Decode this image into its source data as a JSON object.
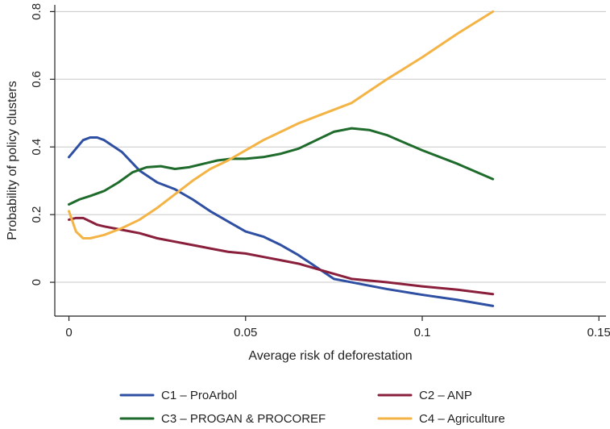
{
  "chart_data": {
    "type": "line",
    "title": "",
    "xlabel": "Average risk of deforestation",
    "ylabel": "Probability of policy clusters",
    "xlim": [
      -0.004,
      0.152
    ],
    "ylim": [
      -0.1,
      0.82
    ],
    "x_ticks": [
      0,
      0.05,
      0.1,
      0.15
    ],
    "x_tick_labels": [
      "0",
      "0.05",
      "0.1",
      "0.15"
    ],
    "y_ticks": [
      0,
      0.2,
      0.4,
      0.6,
      0.8
    ],
    "y_tick_labels": [
      "0",
      "0.2",
      "0.4",
      "0.6",
      "0.8"
    ],
    "grid": "horizontal",
    "legend_position": "bottom",
    "series": [
      {
        "name": "C1 – ProArbol",
        "color": "#2e4fa2",
        "points": [
          [
            0,
            0.37
          ],
          [
            0.002,
            0.395
          ],
          [
            0.004,
            0.42
          ],
          [
            0.006,
            0.428
          ],
          [
            0.008,
            0.428
          ],
          [
            0.01,
            0.42
          ],
          [
            0.015,
            0.385
          ],
          [
            0.02,
            0.33
          ],
          [
            0.025,
            0.295
          ],
          [
            0.03,
            0.275
          ],
          [
            0.035,
            0.245
          ],
          [
            0.04,
            0.21
          ],
          [
            0.045,
            0.18
          ],
          [
            0.05,
            0.15
          ],
          [
            0.055,
            0.135
          ],
          [
            0.06,
            0.11
          ],
          [
            0.065,
            0.08
          ],
          [
            0.07,
            0.045
          ],
          [
            0.075,
            0.01
          ],
          [
            0.08,
            0.0
          ],
          [
            0.09,
            -0.02
          ],
          [
            0.1,
            -0.037
          ],
          [
            0.11,
            -0.052
          ],
          [
            0.12,
            -0.07
          ]
        ]
      },
      {
        "name": "C2 – ANP",
        "color": "#8a1f3c",
        "points": [
          [
            0,
            0.185
          ],
          [
            0.002,
            0.19
          ],
          [
            0.004,
            0.19
          ],
          [
            0.006,
            0.18
          ],
          [
            0.008,
            0.17
          ],
          [
            0.01,
            0.165
          ],
          [
            0.015,
            0.155
          ],
          [
            0.02,
            0.145
          ],
          [
            0.025,
            0.13
          ],
          [
            0.03,
            0.12
          ],
          [
            0.035,
            0.11
          ],
          [
            0.04,
            0.1
          ],
          [
            0.045,
            0.09
          ],
          [
            0.05,
            0.085
          ],
          [
            0.055,
            0.075
          ],
          [
            0.06,
            0.065
          ],
          [
            0.065,
            0.055
          ],
          [
            0.07,
            0.04
          ],
          [
            0.075,
            0.025
          ],
          [
            0.08,
            0.01
          ],
          [
            0.09,
            0.0
          ],
          [
            0.1,
            -0.012
          ],
          [
            0.11,
            -0.022
          ],
          [
            0.12,
            -0.035
          ]
        ]
      },
      {
        "name": "C3 – PROGAN & PROCOREF",
        "color": "#1f6b2c",
        "points": [
          [
            0,
            0.23
          ],
          [
            0.003,
            0.245
          ],
          [
            0.006,
            0.255
          ],
          [
            0.01,
            0.27
          ],
          [
            0.014,
            0.295
          ],
          [
            0.018,
            0.325
          ],
          [
            0.022,
            0.34
          ],
          [
            0.026,
            0.343
          ],
          [
            0.03,
            0.335
          ],
          [
            0.034,
            0.34
          ],
          [
            0.038,
            0.35
          ],
          [
            0.042,
            0.36
          ],
          [
            0.046,
            0.365
          ],
          [
            0.05,
            0.365
          ],
          [
            0.055,
            0.37
          ],
          [
            0.06,
            0.38
          ],
          [
            0.065,
            0.395
          ],
          [
            0.07,
            0.42
          ],
          [
            0.075,
            0.445
          ],
          [
            0.08,
            0.455
          ],
          [
            0.085,
            0.45
          ],
          [
            0.09,
            0.435
          ],
          [
            0.1,
            0.39
          ],
          [
            0.11,
            0.35
          ],
          [
            0.12,
            0.305
          ]
        ]
      },
      {
        "name": "C4 – Agriculture",
        "color": "#f4b445",
        "points": [
          [
            0,
            0.21
          ],
          [
            0.002,
            0.15
          ],
          [
            0.004,
            0.13
          ],
          [
            0.006,
            0.13
          ],
          [
            0.008,
            0.135
          ],
          [
            0.01,
            0.14
          ],
          [
            0.015,
            0.16
          ],
          [
            0.02,
            0.185
          ],
          [
            0.025,
            0.22
          ],
          [
            0.03,
            0.26
          ],
          [
            0.035,
            0.3
          ],
          [
            0.04,
            0.335
          ],
          [
            0.045,
            0.36
          ],
          [
            0.05,
            0.39
          ],
          [
            0.055,
            0.42
          ],
          [
            0.06,
            0.445
          ],
          [
            0.065,
            0.47
          ],
          [
            0.07,
            0.49
          ],
          [
            0.075,
            0.51
          ],
          [
            0.08,
            0.53
          ],
          [
            0.09,
            0.6
          ],
          [
            0.1,
            0.665
          ],
          [
            0.11,
            0.735
          ],
          [
            0.12,
            0.8
          ]
        ]
      }
    ]
  }
}
